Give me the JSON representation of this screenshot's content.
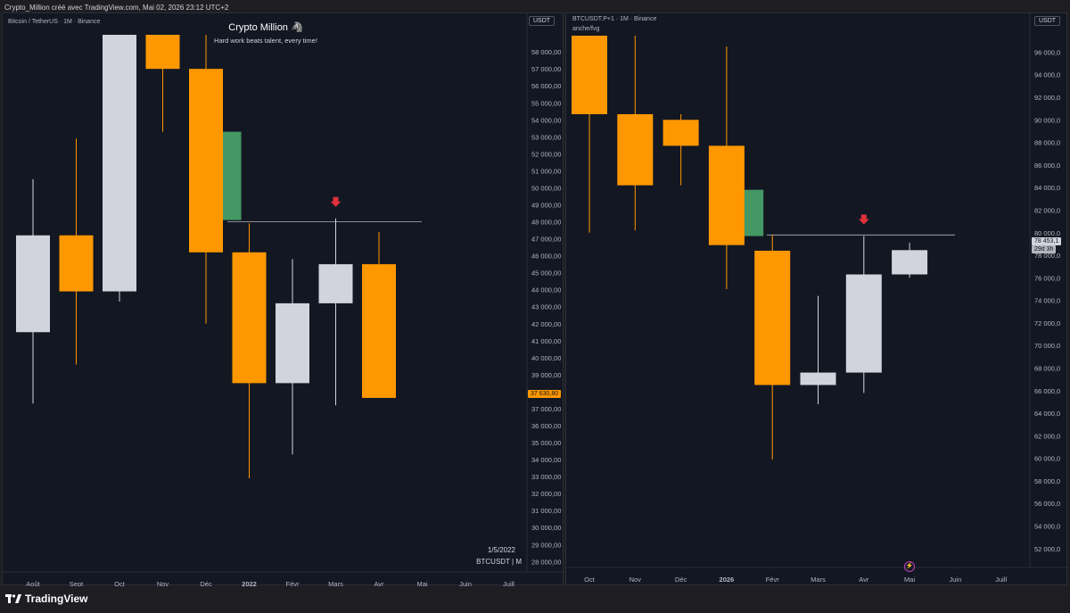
{
  "header": {
    "caption": "Crypto_Million créé avec TradingView.com, Mai 02, 2026 23:12 UTC+2"
  },
  "footer": {
    "brand": "TradingView"
  },
  "colors": {
    "up": "#d1d4dc",
    "down": "#ff9800",
    "fvg": "#4caf70",
    "arrow": "#e0313a",
    "bg": "#131722"
  },
  "pane1": {
    "symbol": "Bitcoin / TetherUS · 1M · Binance",
    "currency": "USDT",
    "overlay_title": "Crypto Million 🦓",
    "overlay_subtitle": "Hard work beats talent, every time!",
    "date_stamp": "1/5/2022",
    "ticker_stamp": "BTCUSDT | M",
    "price_label": "37 630,80",
    "y_ticks": [
      "58 000,00",
      "57 000,00",
      "56 000,00",
      "55 000,00",
      "54 000,00",
      "53 000,00",
      "52 000,00",
      "51 000,00",
      "50 000,00",
      "49 000,00",
      "48 000,00",
      "47 000,00",
      "46 000,00",
      "45 000,00",
      "44 000,00",
      "43 000,00",
      "42 000,00",
      "41 000,00",
      "40 000,00",
      "39 000,00",
      "38 000,00",
      "37 000,00",
      "36 000,00",
      "35 000,00",
      "34 000,00",
      "33 000,00",
      "32 000,00",
      "31 000,00",
      "30 000,00",
      "29 000,00",
      "28 000,00"
    ],
    "x_labels": [
      "Août",
      "Sept",
      "Oct",
      "Nov",
      "Déc",
      "2022",
      "Févr",
      "Mars",
      "Avr",
      "Mai",
      "Juin",
      "Juill"
    ]
  },
  "pane2": {
    "symbol": "BTCUSDT.P+1 · 1M · Binance",
    "indicator": "anche/fvg",
    "currency": "USDT",
    "price_label": "78 453,1",
    "countdown": "29d 3h",
    "y_ticks": [
      "96 000,0",
      "94 000,0",
      "92 000,0",
      "90 000,0",
      "88 000,0",
      "86 000,0",
      "84 000,0",
      "82 000,0",
      "80 000,0",
      "78 000,0",
      "76 000,0",
      "74 000,0",
      "72 000,0",
      "70 000,0",
      "68 000,0",
      "66 000,0",
      "64 000,0",
      "62 000,0",
      "60 000,0",
      "58 000,0",
      "56 000,0",
      "54 000,0",
      "52 000,0"
    ],
    "x_labels": [
      "Oct",
      "Nov",
      "Déc",
      "2026",
      "Févr",
      "Mars",
      "Avr",
      "Mai",
      "Juin",
      "Juill"
    ]
  },
  "chart_data": [
    {
      "type": "candlestick",
      "title": "Bitcoin / TetherUS · 1M · Binance",
      "ylim": [
        27700,
        58900
      ],
      "series": [
        {
          "x": "Août",
          "open": 41500,
          "high": 50500,
          "low": 37300,
          "close": 47200
        },
        {
          "x": "Sept",
          "open": 47200,
          "high": 52900,
          "low": 39600,
          "close": 43900
        },
        {
          "x": "Oct",
          "open": 43900,
          "high": 66999,
          "low": 43300,
          "close": 61300
        },
        {
          "x": "Nov",
          "open": 61300,
          "high": 69000,
          "low": 53300,
          "close": 57000
        },
        {
          "x": "Déc",
          "open": 57000,
          "high": 59000,
          "low": 42000,
          "close": 46200
        },
        {
          "x": "2022",
          "open": 46200,
          "high": 47900,
          "low": 32900,
          "close": 38500
        },
        {
          "x": "Févr",
          "open": 38500,
          "high": 45800,
          "low": 34300,
          "close": 43200
        },
        {
          "x": "Mars",
          "open": 43200,
          "high": 48200,
          "low": 37200,
          "close": 45500
        },
        {
          "x": "Avr",
          "open": 45500,
          "high": 47400,
          "low": 37700,
          "close": 37630.8
        }
      ],
      "fvg": {
        "from": "Déc",
        "low": 48100,
        "high": 53300
      },
      "level": 48000
    },
    {
      "type": "candlestick",
      "title": "BTCUSDT.P+1 · 1M · Binance",
      "ylim": [
        50800,
        97300
      ],
      "series": [
        {
          "x": "Oct",
          "open": 98000,
          "high": 99000,
          "low": 80000,
          "close": 90500
        },
        {
          "x": "Nov",
          "open": 90500,
          "high": 98000,
          "low": 80200,
          "close": 84200
        },
        {
          "x": "Déc",
          "open": 90000,
          "high": 90500,
          "low": 84200,
          "close": 87700
        },
        {
          "x": "2026",
          "open": 87700,
          "high": 96500,
          "low": 75000,
          "close": 78900
        },
        {
          "x": "Févr",
          "open": 78400,
          "high": 79800,
          "low": 59900,
          "close": 66500
        },
        {
          "x": "Mars",
          "open": 66500,
          "high": 74400,
          "low": 64800,
          "close": 67600
        },
        {
          "x": "Avr",
          "open": 67600,
          "high": 79700,
          "low": 65800,
          "close": 76300
        },
        {
          "x": "Mai",
          "open": 76300,
          "high": 79100,
          "low": 76000,
          "close": 78453.1
        }
      ],
      "fvg": {
        "from": "2026",
        "low": 79700,
        "high": 83800
      },
      "level": 79800
    }
  ]
}
